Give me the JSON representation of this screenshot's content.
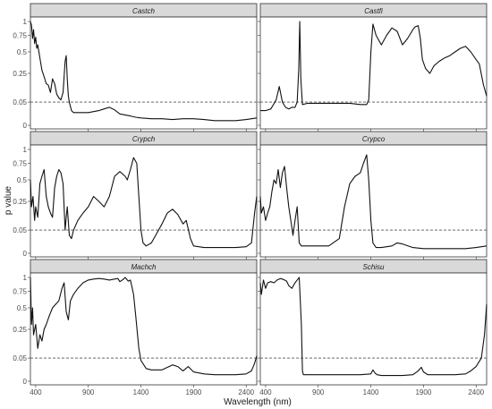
{
  "chart_data": {
    "type": "line",
    "xlabel": "Wavelength (nm)",
    "ylabel": "p value",
    "xlim": [
      350,
      2500
    ],
    "x_ticks": [
      400,
      900,
      1400,
      1900,
      2400
    ],
    "y_ticks": [
      0,
      0.05,
      0.25,
      0.5,
      0.75,
      1
    ],
    "y_tick_labels": [
      "0",
      "0.05",
      "0.25",
      "0.5",
      "0.75",
      "1"
    ],
    "y_scale": "sqrt",
    "reference_line": {
      "y": 0.05,
      "style": "dashed"
    },
    "layout": {
      "rows": 3,
      "cols": 2
    },
    "grid": false,
    "panels": [
      {
        "label": "Castch",
        "x": [
          350,
          360,
          370,
          380,
          390,
          400,
          410,
          420,
          440,
          460,
          480,
          500,
          520,
          540,
          560,
          580,
          600,
          620,
          640,
          660,
          680,
          690,
          700,
          710,
          720,
          740,
          760,
          800,
          900,
          1000,
          1050,
          1100,
          1150,
          1200,
          1250,
          1300,
          1350,
          1400,
          1500,
          1600,
          1700,
          1800,
          1900,
          2000,
          2100,
          2200,
          2300,
          2400,
          2450,
          2500
        ],
        "y": [
          1.0,
          0.93,
          0.7,
          0.85,
          0.62,
          0.72,
          0.55,
          0.6,
          0.42,
          0.28,
          0.22,
          0.16,
          0.15,
          0.1,
          0.2,
          0.16,
          0.09,
          0.07,
          0.06,
          0.1,
          0.38,
          0.45,
          0.2,
          0.08,
          0.05,
          0.02,
          0.015,
          0.015,
          0.015,
          0.02,
          0.025,
          0.03,
          0.022,
          0.012,
          0.01,
          0.008,
          0.006,
          0.005,
          0.004,
          0.004,
          0.003,
          0.004,
          0.004,
          0.003,
          0.002,
          0.002,
          0.002,
          0.003,
          0.004,
          0.005
        ]
      },
      {
        "label": "Castfi",
        "x": [
          350,
          400,
          450,
          500,
          530,
          560,
          590,
          620,
          650,
          680,
          700,
          715,
          725,
          735,
          750,
          800,
          900,
          1000,
          1100,
          1200,
          1300,
          1360,
          1380,
          1400,
          1420,
          1450,
          1500,
          1550,
          1600,
          1650,
          1700,
          1750,
          1800,
          1820,
          1850,
          1870,
          1890,
          1920,
          1960,
          2000,
          2050,
          2100,
          2150,
          2200,
          2250,
          2300,
          2350,
          2400,
          2430,
          2470,
          2500
        ],
        "y": [
          0.02,
          0.02,
          0.025,
          0.06,
          0.14,
          0.05,
          0.03,
          0.025,
          0.03,
          0.03,
          0.05,
          0.3,
          1.0,
          0.2,
          0.04,
          0.045,
          0.045,
          0.045,
          0.045,
          0.045,
          0.04,
          0.04,
          0.06,
          0.5,
          0.95,
          0.75,
          0.6,
          0.75,
          0.88,
          0.82,
          0.6,
          0.7,
          0.85,
          0.9,
          0.92,
          0.7,
          0.4,
          0.3,
          0.25,
          0.33,
          0.38,
          0.42,
          0.45,
          0.5,
          0.55,
          0.58,
          0.5,
          0.4,
          0.35,
          0.15,
          0.08
        ]
      },
      {
        "label": "Crypch",
        "x": [
          350,
          360,
          375,
          390,
          400,
          420,
          440,
          460,
          480,
          500,
          520,
          540,
          560,
          580,
          600,
          620,
          640,
          660,
          680,
          690,
          700,
          720,
          740,
          760,
          800,
          850,
          900,
          950,
          1000,
          1050,
          1100,
          1150,
          1200,
          1250,
          1270,
          1300,
          1330,
          1360,
          1380,
          1400,
          1420,
          1450,
          1500,
          1600,
          1650,
          1700,
          1750,
          1800,
          1830,
          1870,
          1900,
          2000,
          2100,
          2200,
          2300,
          2400,
          2450,
          2480,
          2500
        ],
        "y": [
          0.5,
          0.2,
          0.3,
          0.1,
          0.2,
          0.12,
          0.45,
          0.55,
          0.65,
          0.3,
          0.2,
          0.15,
          0.12,
          0.4,
          0.55,
          0.65,
          0.6,
          0.45,
          0.05,
          0.12,
          0.2,
          0.03,
          0.02,
          0.05,
          0.1,
          0.15,
          0.2,
          0.3,
          0.25,
          0.2,
          0.3,
          0.55,
          0.62,
          0.55,
          0.5,
          0.65,
          0.85,
          0.75,
          0.3,
          0.05,
          0.01,
          0.005,
          0.01,
          0.08,
          0.15,
          0.18,
          0.14,
          0.08,
          0.1,
          0.02,
          0.005,
          0.003,
          0.003,
          0.003,
          0.003,
          0.004,
          0.01,
          0.15,
          0.3
        ]
      },
      {
        "label": "Crypco",
        "x": [
          350,
          360,
          380,
          400,
          420,
          440,
          460,
          480,
          500,
          520,
          540,
          560,
          580,
          600,
          620,
          640,
          660,
          680,
          700,
          720,
          740,
          800,
          900,
          1000,
          1100,
          1150,
          1200,
          1250,
          1300,
          1330,
          1360,
          1380,
          1400,
          1420,
          1450,
          1500,
          1600,
          1650,
          1700,
          1800,
          1900,
          2000,
          2100,
          2200,
          2300,
          2400,
          2450,
          2500
        ],
        "y": [
          0.3,
          0.15,
          0.2,
          0.1,
          0.15,
          0.2,
          0.35,
          0.5,
          0.45,
          0.65,
          0.4,
          0.6,
          0.7,
          0.4,
          0.2,
          0.1,
          0.03,
          0.1,
          0.2,
          0.01,
          0.005,
          0.005,
          0.005,
          0.005,
          0.02,
          0.2,
          0.45,
          0.55,
          0.6,
          0.75,
          0.9,
          0.5,
          0.1,
          0.01,
          0.003,
          0.003,
          0.005,
          0.01,
          0.008,
          0.003,
          0.002,
          0.002,
          0.002,
          0.002,
          0.002,
          0.003,
          0.004,
          0.005
        ]
      },
      {
        "label": "Machch",
        "x": [
          350,
          360,
          370,
          380,
          400,
          420,
          440,
          460,
          480,
          500,
          530,
          560,
          590,
          620,
          650,
          670,
          690,
          710,
          730,
          760,
          800,
          850,
          900,
          950,
          1000,
          1050,
          1100,
          1150,
          1180,
          1200,
          1230,
          1250,
          1280,
          1300,
          1330,
          1350,
          1380,
          1400,
          1450,
          1500,
          1600,
          1700,
          1750,
          1800,
          1850,
          1900,
          2000,
          2100,
          2200,
          2300,
          2400,
          2450,
          2480,
          2500
        ],
        "y": [
          1.0,
          0.3,
          0.5,
          0.2,
          0.3,
          0.1,
          0.2,
          0.15,
          0.25,
          0.3,
          0.4,
          0.5,
          0.55,
          0.6,
          0.8,
          0.9,
          0.45,
          0.35,
          0.6,
          0.7,
          0.8,
          0.9,
          0.95,
          0.97,
          0.98,
          0.97,
          0.95,
          0.97,
          0.98,
          0.92,
          0.96,
          1.0,
          0.93,
          0.95,
          0.7,
          0.4,
          0.1,
          0.04,
          0.015,
          0.012,
          0.012,
          0.025,
          0.02,
          0.01,
          0.02,
          0.008,
          0.005,
          0.004,
          0.004,
          0.004,
          0.005,
          0.01,
          0.03,
          0.06
        ]
      },
      {
        "label": "Schisu",
        "x": [
          350,
          360,
          380,
          400,
          420,
          450,
          480,
          510,
          540,
          570,
          600,
          620,
          650,
          680,
          700,
          720,
          740,
          750,
          760,
          800,
          900,
          1000,
          1100,
          1200,
          1300,
          1400,
          1420,
          1440,
          1460,
          1500,
          1600,
          1700,
          1800,
          1850,
          1880,
          1900,
          1920,
          1940,
          2000,
          2100,
          2200,
          2300,
          2350,
          2400,
          2450,
          2480,
          2500
        ],
        "y": [
          0.9,
          0.7,
          0.95,
          0.8,
          0.9,
          0.92,
          0.9,
          0.95,
          0.98,
          0.96,
          0.93,
          0.85,
          0.8,
          0.9,
          0.95,
          1.0,
          0.3,
          0.01,
          0.004,
          0.004,
          0.004,
          0.004,
          0.004,
          0.004,
          0.004,
          0.005,
          0.012,
          0.006,
          0.004,
          0.003,
          0.003,
          0.003,
          0.004,
          0.01,
          0.018,
          0.008,
          0.006,
          0.004,
          0.004,
          0.004,
          0.004,
          0.005,
          0.01,
          0.02,
          0.05,
          0.2,
          0.55
        ]
      }
    ]
  }
}
